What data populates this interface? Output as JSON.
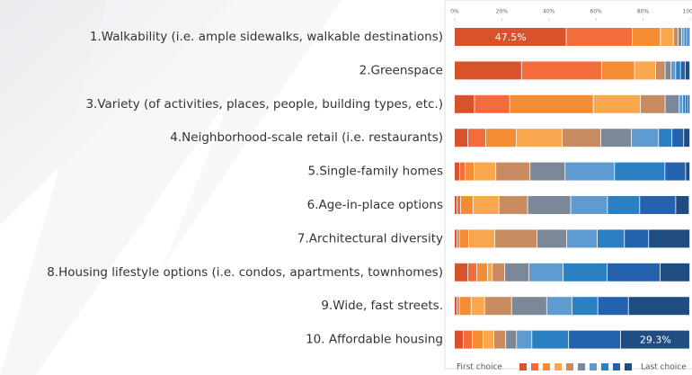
{
  "chart_data": {
    "type": "stacked-barh",
    "categories": [
      "1.Walkability (i.e. ample sidewalks, walkable destinations)",
      "2.Greenspace",
      "3.Variety (of activities, places, people, building types, etc.)",
      "4.Neighborhood-scale retail (i.e. restaurants)",
      "5.Single-family homes",
      "6.Age-in-place options",
      "7.Architectural diversity",
      "8.Housing lifestyle options (i.e. condos, apartments, townhomes)",
      "9.Wide, fast streets.",
      "10.  Affordable housing"
    ],
    "series": [
      {
        "color": "#d8532b",
        "values": [
          47.5,
          28.5,
          8.5,
          5.7,
          2.3,
          1.1,
          1.1,
          5.7,
          1.1,
          3.8
        ],
        "value_labels": [
          "47.5%",
          null,
          null,
          null,
          null,
          null,
          null,
          null,
          null,
          null
        ]
      },
      {
        "color": "#f26c3c",
        "values": [
          28,
          34,
          15,
          7.6,
          2.3,
          1.5,
          1,
          3.8,
          1,
          3.8
        ]
      },
      {
        "color": "#f48c34",
        "values": [
          12,
          14,
          35.5,
          13,
          3.8,
          5.3,
          4,
          4.6,
          5,
          4.6
        ]
      },
      {
        "color": "#f8a74c",
        "values": [
          5.5,
          9,
          20,
          19.5,
          9.2,
          11,
          11,
          2,
          5.7,
          4.6
        ]
      },
      {
        "color": "#c98c60",
        "values": [
          2,
          4,
          10.5,
          16.4,
          14.5,
          12.2,
          18,
          5.3,
          11.5,
          5
        ]
      },
      {
        "color": "#7b8898",
        "values": [
          1.5,
          2.5,
          6,
          13,
          14.9,
          18.3,
          12.6,
          10.3,
          14.9,
          4.6
        ]
      },
      {
        "color": "#5d9bd1",
        "values": [
          1,
          2,
          1.5,
          11.5,
          21,
          15.6,
          13,
          14.5,
          10.7,
          6.5
        ]
      },
      {
        "color": "#2a80c1",
        "values": [
          1,
          2,
          1.2,
          5.7,
          21.4,
          13.7,
          11.5,
          18.7,
          11,
          15.6
        ]
      },
      {
        "color": "#2462ad",
        "values": [
          0.8,
          2,
          1,
          5,
          8.8,
          15.3,
          10.3,
          22.5,
          13,
          22.1
        ]
      },
      {
        "color": "#1f4d82",
        "values": [
          0.7,
          2,
          0.8,
          2.6,
          1.8,
          5.7,
          17.5,
          12.6,
          26,
          29.3
        ],
        "value_labels": [
          null,
          null,
          null,
          null,
          null,
          null,
          null,
          null,
          null,
          "29.3%"
        ]
      }
    ],
    "xlim": [
      0,
      100
    ],
    "xticks": [
      {
        "value": 0,
        "label": "0%"
      },
      {
        "value": 20,
        "label": "20%"
      },
      {
        "value": 40,
        "label": "40%"
      },
      {
        "value": 60,
        "label": "60%"
      },
      {
        "value": 80,
        "label": "80%"
      },
      {
        "value": 100,
        "label": "100%"
      }
    ],
    "legend": {
      "first": "First choice",
      "last": "Last choice"
    }
  }
}
